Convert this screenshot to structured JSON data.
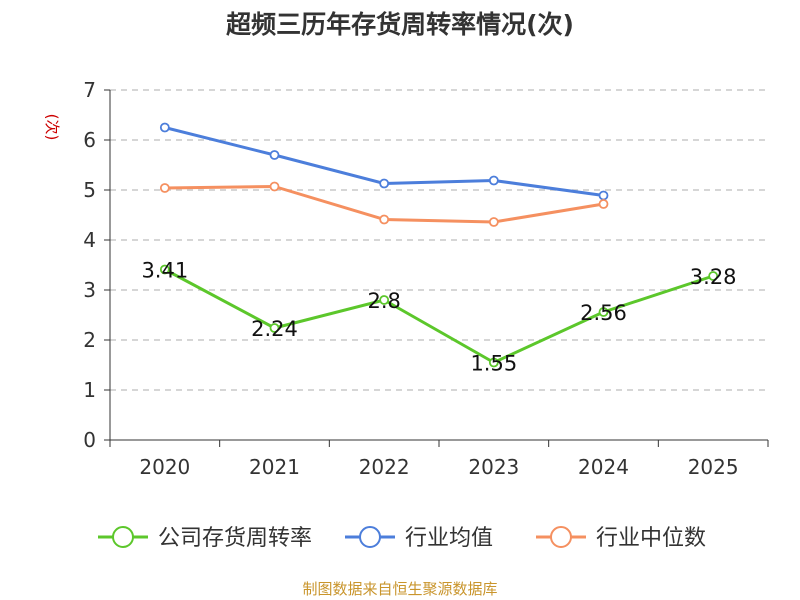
{
  "chart_data": {
    "type": "line",
    "title": "超频三历年存货周转率情况(次)",
    "ylabel": "(次)",
    "categories": [
      "2020",
      "2021",
      "2022",
      "2023",
      "2024",
      "2025"
    ],
    "ylim": [
      0,
      7
    ],
    "yticks": [
      "0",
      "1",
      "2",
      "3",
      "4",
      "5",
      "6",
      "7"
    ],
    "grid": true,
    "legend_position": "bottom",
    "series": [
      {
        "name": "公司存货周转率",
        "color": "#5cc72b",
        "values": [
          3.41,
          2.24,
          2.8,
          1.55,
          2.56,
          3.28
        ],
        "labels": [
          "3.41",
          "2.24",
          "2.8",
          "1.55",
          "2.56",
          "3.28"
        ]
      },
      {
        "name": "行业均值",
        "color": "#4c7edb",
        "values": [
          6.25,
          5.7,
          5.13,
          5.19,
          4.89,
          null
        ]
      },
      {
        "name": "行业中位数",
        "color": "#f59060",
        "values": [
          5.04,
          5.07,
          4.41,
          4.36,
          4.72,
          null
        ]
      }
    ],
    "source": "制图数据来自恒生聚源数据库"
  }
}
